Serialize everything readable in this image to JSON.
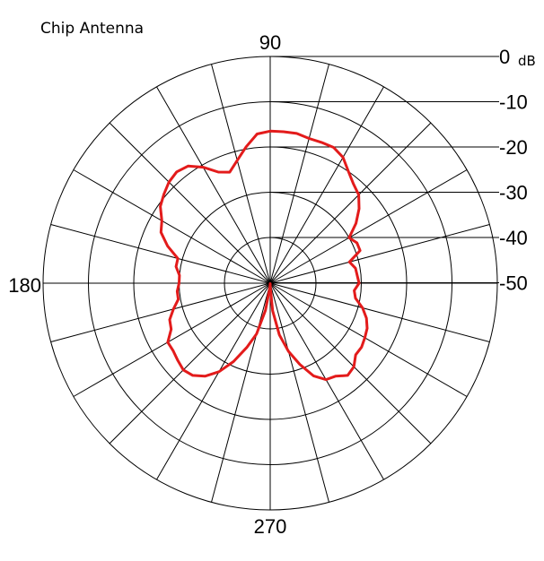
{
  "chart_data": {
    "type": "polar-line",
    "title": "Chip Antenna",
    "unit": "dB",
    "radial_ticks": [
      {
        "value": 0,
        "label": "0"
      },
      {
        "value": -10,
        "label": "-10"
      },
      {
        "value": -20,
        "label": "-20"
      },
      {
        "value": -30,
        "label": "-30"
      },
      {
        "value": -40,
        "label": "-40"
      },
      {
        "value": -50,
        "label": "-50"
      }
    ],
    "angle_labels": [
      {
        "angle": 90,
        "label": "90"
      },
      {
        "angle": 180,
        "label": "180"
      },
      {
        "angle": 270,
        "label": "270"
      }
    ],
    "radial_range": [
      -60,
      0
    ],
    "angular_grid_step_deg": 15,
    "grid": true,
    "series_color": "#e31b1b",
    "series": [
      {
        "angles": [
          0,
          10,
          15,
          20,
          25,
          30,
          35,
          40,
          45,
          50,
          55,
          60,
          65,
          70,
          75,
          80,
          85,
          90,
          95,
          100,
          105,
          110,
          115,
          120,
          125,
          130,
          135,
          140,
          145,
          150,
          155,
          160,
          165,
          170,
          175,
          180,
          185,
          190,
          195,
          200,
          205,
          210,
          215,
          220,
          225,
          230,
          235,
          240,
          245,
          250,
          255,
          260,
          265,
          268,
          270,
          272,
          275,
          280,
          285,
          290,
          295,
          300,
          305,
          310,
          315,
          320,
          325,
          330,
          335,
          340,
          345,
          350,
          355,
          360
        ],
        "values": [
          -30.5,
          -31,
          -32,
          -29,
          -29,
          -30,
          -27,
          -24.5,
          -22.5,
          -21.5,
          -20,
          -18,
          -17,
          -17,
          -17,
          -16.5,
          -16.5,
          -16.5,
          -17,
          -19.5,
          -22,
          -24,
          -23,
          -20.5,
          -18.5,
          -18,
          -18.5,
          -19.5,
          -20.5,
          -22.5,
          -23.5,
          -26,
          -29,
          -29,
          -30,
          -30,
          -29.5,
          -29.5,
          -28,
          -26.5,
          -26,
          -24,
          -24,
          -23.5,
          -23,
          -23.5,
          -25,
          -27.5,
          -31,
          -35,
          -38.5,
          -44,
          -49,
          -50,
          -50,
          -49,
          -44,
          -38.5,
          -34.5,
          -31,
          -27.5,
          -25.5,
          -25,
          -23.5,
          -24,
          -25.5,
          -25.5,
          -26,
          -26.5,
          -27.5,
          -29,
          -31,
          -31.5,
          -30.5
        ]
      }
    ]
  }
}
